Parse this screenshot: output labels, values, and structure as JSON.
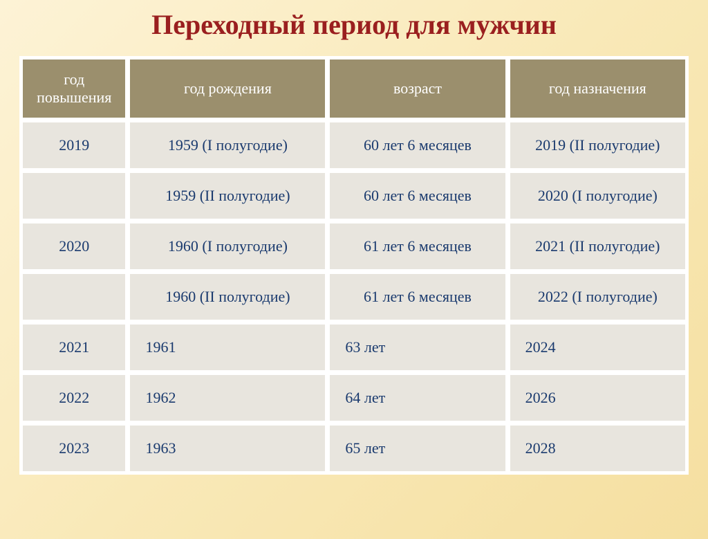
{
  "title": "Переходный период для мужчин",
  "columns": [
    "год повышения",
    "год рождения",
    "возраст",
    "год назначения"
  ],
  "rows": [
    {
      "increase_year": "2019",
      "birth_year": "1959 (I полугодие)",
      "age": "60 лет 6 месяцев",
      "assign_year": "2019 (II полугодие)"
    },
    {
      "increase_year": "",
      "birth_year": "1959 (II полугодие)",
      "age": "60 лет 6 месяцев",
      "assign_year": "2020 (I полугодие)"
    },
    {
      "increase_year": "2020",
      "birth_year": "1960 (I полугодие)",
      "age": "61 лет 6 месяцев",
      "assign_year": "2021 (II полугодие)"
    },
    {
      "increase_year": "",
      "birth_year": "1960 (II полугодие)",
      "age": "61 лет 6 месяцев",
      "assign_year": "2022 (I полугодие)"
    },
    {
      "increase_year": "2021",
      "birth_year": "1961",
      "age": "63 лет",
      "assign_year": "2024"
    },
    {
      "increase_year": "2022",
      "birth_year": "1962",
      "age": "64 лет",
      "assign_year": "2026"
    },
    {
      "increase_year": "2023",
      "birth_year": "1963",
      "age": "65 лет",
      "assign_year": "2028"
    }
  ],
  "style": {
    "title_color": "#9a1f1f",
    "title_fontsize": 40,
    "header_bg": "#9b8f6d",
    "header_text_color": "#ffffff",
    "header_fontsize": 22,
    "cell_bg": "#e8e5de",
    "cell_text_color": "#1a3a6e",
    "cell_fontsize": 22,
    "border_color": "#ffffff",
    "background_gradient": [
      "#fdf3d6",
      "#f9e9b8",
      "#f5dfa0"
    ],
    "col_widths_pct": [
      16,
      30,
      27,
      27
    ],
    "col_align": [
      "center",
      "left",
      "left",
      "left"
    ],
    "centered_rows_indices": [
      0,
      1,
      2,
      3
    ]
  }
}
